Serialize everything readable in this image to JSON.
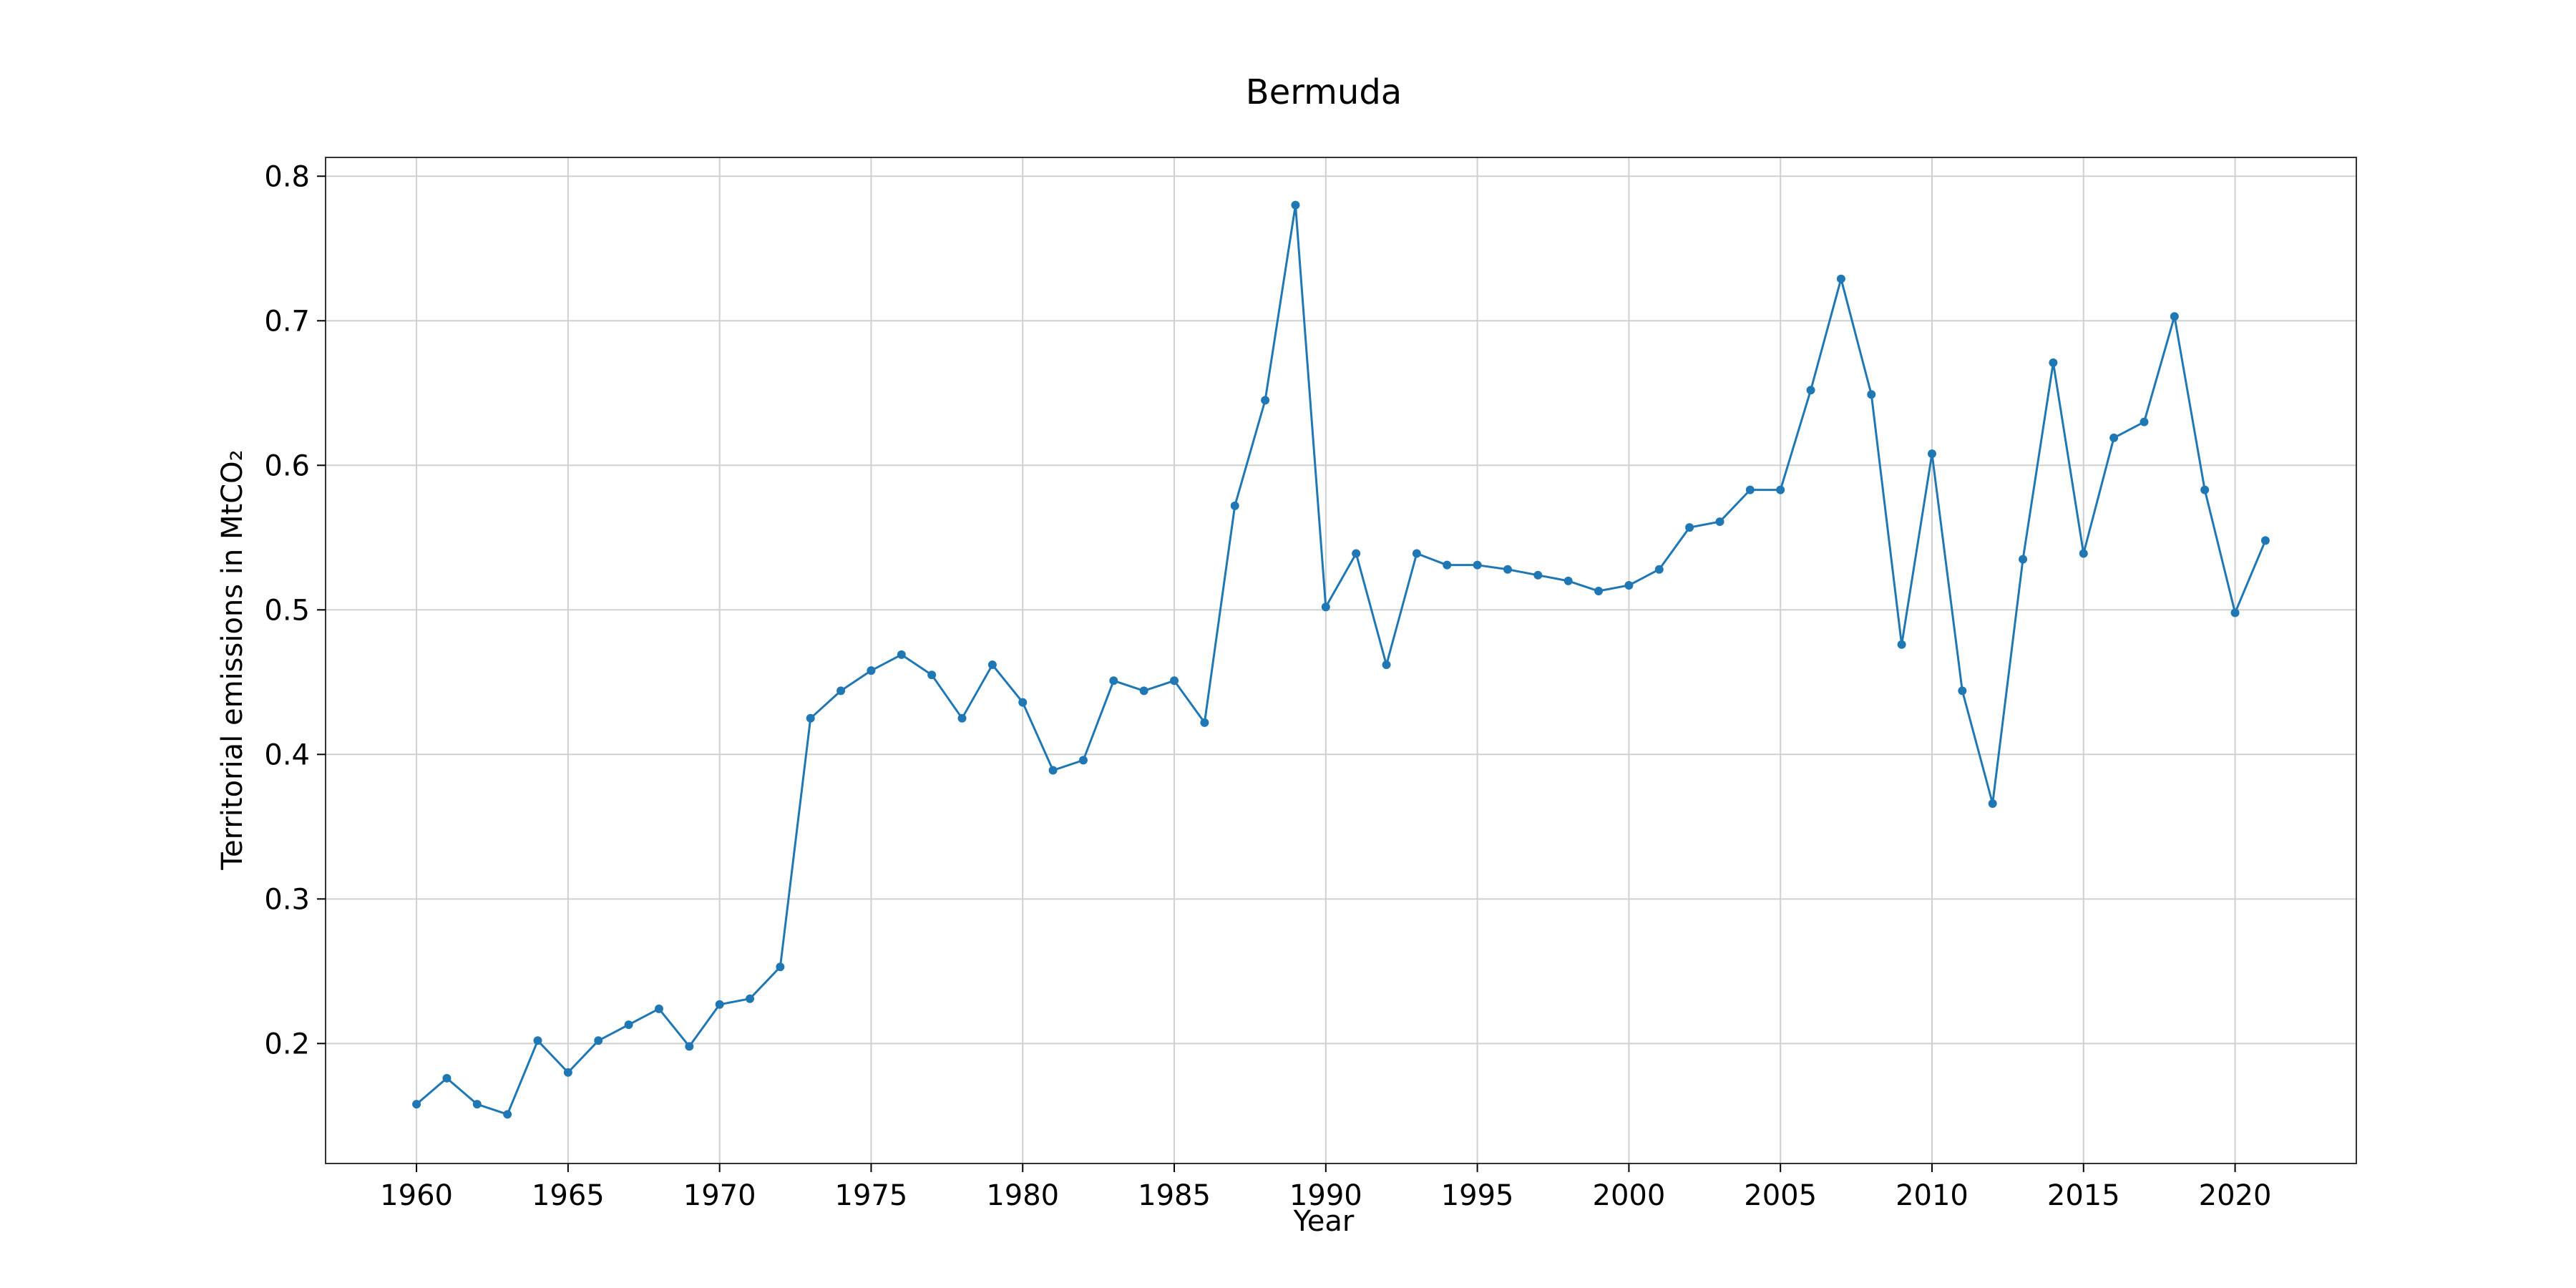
{
  "chart_data": {
    "type": "line",
    "title": "Bermuda",
    "xlabel": "Year",
    "ylabel": "Territorial emissions in MtCO₂",
    "xlim": [
      1957,
      2024
    ],
    "ylim": [
      0.117,
      0.813
    ],
    "xticks": [
      1960,
      1965,
      1970,
      1975,
      1980,
      1985,
      1990,
      1995,
      2000,
      2005,
      2010,
      2015,
      2020
    ],
    "yticks": [
      0.2,
      0.3,
      0.4,
      0.5,
      0.6,
      0.7,
      0.8
    ],
    "grid": true,
    "legend": "none",
    "colors": {
      "series": "#1f77b4",
      "grid": "#d0d0d0",
      "frame": "#333333"
    },
    "x": [
      1960,
      1961,
      1962,
      1963,
      1964,
      1965,
      1966,
      1967,
      1968,
      1969,
      1970,
      1971,
      1972,
      1973,
      1974,
      1975,
      1976,
      1977,
      1978,
      1979,
      1980,
      1981,
      1982,
      1983,
      1984,
      1985,
      1986,
      1987,
      1988,
      1989,
      1990,
      1991,
      1992,
      1993,
      1994,
      1995,
      1996,
      1997,
      1998,
      1999,
      2000,
      2001,
      2002,
      2003,
      2004,
      2005,
      2006,
      2007,
      2008,
      2009,
      2010,
      2011,
      2012,
      2013,
      2014,
      2015,
      2016,
      2017,
      2018,
      2019,
      2020,
      2021
    ],
    "series": [
      {
        "values": [
          0.158,
          0.176,
          0.158,
          0.151,
          0.202,
          0.18,
          0.202,
          0.213,
          0.224,
          0.198,
          0.227,
          0.231,
          0.253,
          0.425,
          0.444,
          0.458,
          0.469,
          0.455,
          0.425,
          0.462,
          0.436,
          0.389,
          0.396,
          0.451,
          0.444,
          0.451,
          0.422,
          0.572,
          0.645,
          0.78,
          0.502,
          0.539,
          0.462,
          0.539,
          0.531,
          0.531,
          0.528,
          0.524,
          0.52,
          0.513,
          0.517,
          0.528,
          0.557,
          0.561,
          0.583,
          0.583,
          0.652,
          0.729,
          0.649,
          0.476,
          0.608,
          0.444,
          0.366,
          0.535,
          0.671,
          0.539,
          0.619,
          0.63,
          0.703,
          0.583,
          0.498,
          0.548
        ]
      }
    ]
  }
}
